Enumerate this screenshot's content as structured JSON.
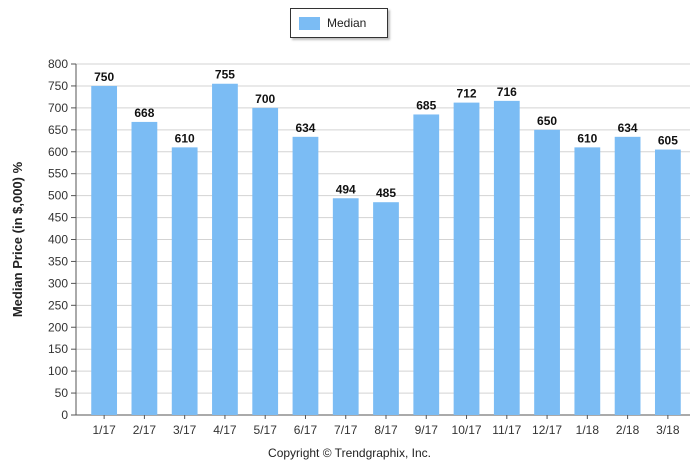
{
  "chart_data": {
    "type": "bar",
    "categories": [
      "1/17",
      "2/17",
      "3/17",
      "4/17",
      "5/17",
      "6/17",
      "7/17",
      "8/17",
      "9/17",
      "10/17",
      "11/17",
      "12/17",
      "1/18",
      "2/18",
      "3/18"
    ],
    "series": [
      {
        "name": "Median",
        "values": [
          750,
          668,
          610,
          755,
          700,
          634,
          494,
          485,
          685,
          712,
          716,
          650,
          610,
          634,
          605
        ],
        "color": "#7bbcf4"
      }
    ],
    "ylabel": "Median Price (in $,000) %",
    "ylim": [
      0,
      800
    ],
    "yticks": [
      0,
      50,
      100,
      150,
      200,
      250,
      300,
      350,
      400,
      450,
      500,
      550,
      600,
      650,
      700,
      750,
      800
    ],
    "grid": true,
    "legend": "top-center",
    "gridline_color": "#d3d3d3"
  },
  "footer": {
    "copyright": "Copyright © Trendgraphix, Inc."
  }
}
